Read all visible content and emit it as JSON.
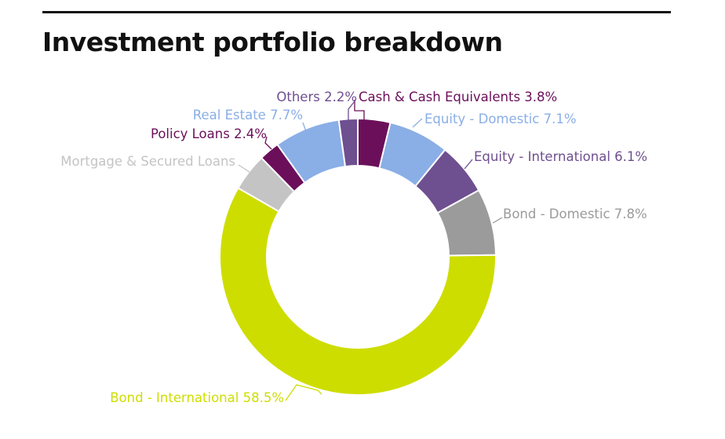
{
  "title": "Investment portfolio breakdown",
  "chart_data": {
    "type": "pie",
    "donut": true,
    "title": "Investment portfolio breakdown",
    "start": "top, clockwise",
    "slices": [
      {
        "label": "Cash & Cash Equivalents 3.8%",
        "value": 3.8,
        "color": "#6b0f5a"
      },
      {
        "label": "Equity - Domestic 7.1%",
        "value": 7.1,
        "color": "#8aaee6"
      },
      {
        "label": "Equity - International 6.1%",
        "value": 6.1,
        "color": "#6e4f90"
      },
      {
        "label": "Bond - Domestic 7.8%",
        "value": 7.8,
        "color": "#9b9b9b"
      },
      {
        "label": "Bond - International 58.5%",
        "value": 58.5,
        "color": "#cedd00"
      },
      {
        "label": "Mortgage & Secured Loans",
        "value": 4.4,
        "color": "#c4c4c4"
      },
      {
        "label": "Policy Loans 2.4%",
        "value": 2.4,
        "color": "#6b0f5a"
      },
      {
        "label": "Real Estate 7.7%",
        "value": 7.7,
        "color": "#8aaee6"
      },
      {
        "label": "Others 2.2%",
        "value": 2.2,
        "color": "#6e4f90"
      }
    ]
  }
}
